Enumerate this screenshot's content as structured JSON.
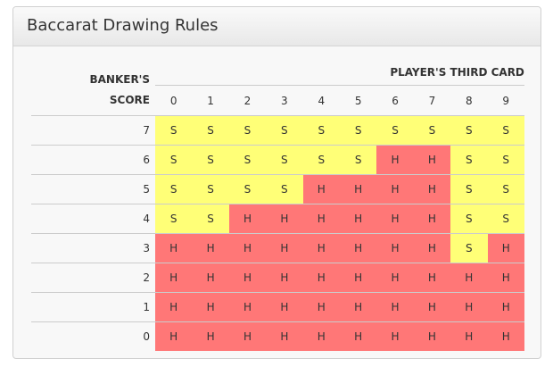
{
  "title": "Baccarat Drawing Rules",
  "banker_label_1": "BANKER'S",
  "banker_label_2": "SCORE",
  "player_label": "PLAYER'S THIRD CARD",
  "columns": [
    "0",
    "1",
    "2",
    "3",
    "4",
    "5",
    "6",
    "7",
    "8",
    "9"
  ],
  "colors": {
    "S": "#ffff77",
    "H": "#ff7777"
  },
  "rows": [
    {
      "score": "7",
      "cells": [
        "S",
        "S",
        "S",
        "S",
        "S",
        "S",
        "S",
        "S",
        "S",
        "S"
      ]
    },
    {
      "score": "6",
      "cells": [
        "S",
        "S",
        "S",
        "S",
        "S",
        "S",
        "H",
        "H",
        "S",
        "S"
      ]
    },
    {
      "score": "5",
      "cells": [
        "S",
        "S",
        "S",
        "S",
        "H",
        "H",
        "H",
        "H",
        "S",
        "S"
      ]
    },
    {
      "score": "4",
      "cells": [
        "S",
        "S",
        "H",
        "H",
        "H",
        "H",
        "H",
        "H",
        "S",
        "S"
      ]
    },
    {
      "score": "3",
      "cells": [
        "H",
        "H",
        "H",
        "H",
        "H",
        "H",
        "H",
        "H",
        "S",
        "H"
      ]
    },
    {
      "score": "2",
      "cells": [
        "H",
        "H",
        "H",
        "H",
        "H",
        "H",
        "H",
        "H",
        "H",
        "H"
      ]
    },
    {
      "score": "1",
      "cells": [
        "H",
        "H",
        "H",
        "H",
        "H",
        "H",
        "H",
        "H",
        "H",
        "H"
      ]
    },
    {
      "score": "0",
      "cells": [
        "H",
        "H",
        "H",
        "H",
        "H",
        "H",
        "H",
        "H",
        "H",
        "H"
      ]
    }
  ]
}
